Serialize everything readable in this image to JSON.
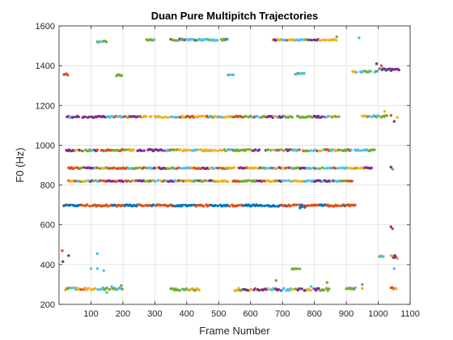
{
  "chart_data": {
    "type": "scatter",
    "title": "Duan Pure Multipitch Trajectories",
    "xlabel": "Frame Number",
    "ylabel": "F0 (Hz)",
    "xlim": [
      0,
      1100
    ],
    "ylim": [
      200,
      1600
    ],
    "xticks": [
      100,
      200,
      300,
      400,
      500,
      600,
      700,
      800,
      900,
      1000,
      1100
    ],
    "yticks": [
      200,
      400,
      600,
      800,
      1000,
      1200,
      1400,
      1600
    ],
    "grid": true,
    "legend": "none",
    "colors": [
      "#0072BD",
      "#D95319",
      "#EDB120",
      "#7E2F8E",
      "#77AC30",
      "#4DBEEE"
    ],
    "segments": [
      {
        "x": [
          15,
          930
        ],
        "y": 697,
        "jitter": 4,
        "colors": [
          0,
          1
        ]
      },
      {
        "x": [
          15,
          990
        ],
        "y": 975,
        "jitter": 4,
        "colors": [
          1,
          2,
          3,
          4,
          5
        ]
      },
      {
        "x": [
          30,
          980
        ],
        "y": 885,
        "jitter": 3,
        "colors": [
          1,
          2,
          3,
          4,
          5
        ]
      },
      {
        "x": [
          30,
          530
        ],
        "y": 820,
        "jitter": 3,
        "colors": [
          1,
          2,
          3,
          4,
          5
        ]
      },
      {
        "x": [
          545,
          920
        ],
        "y": 820,
        "jitter": 3,
        "colors": [
          1,
          2,
          3,
          4,
          5
        ]
      },
      {
        "x": [
          25,
          880
        ],
        "y": 1143,
        "jitter": 4,
        "colors": [
          1,
          2,
          3,
          4,
          5
        ]
      },
      {
        "x": [
          950,
          1030
        ],
        "y": 1145,
        "jitter": 4,
        "colors": [
          2,
          4,
          5
        ]
      },
      {
        "x": [
          120,
          150
        ],
        "y": 1520,
        "jitter": 5,
        "colors": [
          4,
          5
        ]
      },
      {
        "x": [
          270,
          300
        ],
        "y": 1530,
        "jitter": 3,
        "colors": [
          4,
          5
        ]
      },
      {
        "x": [
          350,
          530
        ],
        "y": 1530,
        "jitter": 4,
        "colors": [
          3,
          4,
          5
        ]
      },
      {
        "x": [
          670,
          870
        ],
        "y": 1530,
        "jitter": 3,
        "colors": [
          2,
          3,
          4,
          5
        ]
      },
      {
        "x": [
          920,
          1000
        ],
        "y": 1370,
        "jitter": 3,
        "colors": [
          2,
          4,
          5
        ]
      },
      {
        "x": [
          1000,
          1070
        ],
        "y": 1380,
        "jitter": 5,
        "colors": [
          0,
          3,
          5
        ]
      },
      {
        "x": [
          15,
          30
        ],
        "y": 1355,
        "jitter": 5,
        "colors": [
          1,
          2
        ]
      },
      {
        "x": [
          180,
          200
        ],
        "y": 1350,
        "jitter": 5,
        "colors": [
          4,
          5
        ]
      },
      {
        "x": [
          530,
          550
        ],
        "y": 1355,
        "jitter": 3,
        "colors": [
          4,
          5
        ]
      },
      {
        "x": [
          740,
          770
        ],
        "y": 1360,
        "jitter": 3,
        "colors": [
          4,
          5
        ]
      },
      {
        "x": [
          20,
          200
        ],
        "y": 278,
        "jitter": 6,
        "colors": [
          1,
          2,
          4,
          5
        ]
      },
      {
        "x": [
          350,
          440
        ],
        "y": 275,
        "jitter": 5,
        "colors": [
          2,
          4,
          5
        ]
      },
      {
        "x": [
          550,
          850
        ],
        "y": 275,
        "jitter": 6,
        "colors": [
          2,
          3,
          4,
          5
        ]
      },
      {
        "x": [
          900,
          930
        ],
        "y": 280,
        "jitter": 5,
        "colors": [
          4,
          5
        ]
      },
      {
        "x": [
          1040,
          1060
        ],
        "y": 280,
        "jitter": 5,
        "colors": [
          1,
          2,
          3
        ]
      },
      {
        "x": [
          730,
          760
        ],
        "y": 378,
        "jitter": 2,
        "colors": [
          4
        ]
      },
      {
        "x": [
          1000,
          1020
        ],
        "y": 440,
        "jitter": 5,
        "colors": [
          4,
          5
        ]
      },
      {
        "x": [
          1040,
          1060
        ],
        "y": 440,
        "jitter": 6,
        "colors": [
          2,
          3
        ]
      }
    ],
    "extra_points": [
      [
        10,
        470,
        1
      ],
      [
        12,
        415,
        3
      ],
      [
        30,
        445,
        3
      ],
      [
        100,
        380,
        5
      ],
      [
        120,
        380,
        5
      ],
      [
        120,
        455,
        5
      ],
      [
        140,
        370,
        5
      ],
      [
        150,
        260,
        5
      ],
      [
        165,
        290,
        5
      ],
      [
        195,
        295,
        4
      ],
      [
        680,
        320,
        4
      ],
      [
        750,
        1610,
        4
      ],
      [
        870,
        1545,
        4
      ],
      [
        940,
        1540,
        5
      ],
      [
        995,
        1410,
        3
      ],
      [
        1010,
        1400,
        1
      ],
      [
        1020,
        1170,
        2
      ],
      [
        1040,
        1150,
        1
      ],
      [
        1050,
        1120,
        3
      ],
      [
        1060,
        1140,
        2
      ],
      [
        1040,
        890,
        3
      ],
      [
        1045,
        880,
        4
      ],
      [
        1040,
        590,
        3
      ],
      [
        1045,
        580,
        1
      ],
      [
        1050,
        380,
        5
      ],
      [
        1060,
        430,
        2
      ],
      [
        950,
        280,
        2
      ],
      [
        950,
        300,
        4
      ],
      [
        840,
        310,
        4
      ],
      [
        790,
        290,
        5
      ],
      [
        760,
        690,
        0
      ],
      [
        770,
        688,
        0
      ],
      [
        755,
        685,
        0
      ]
    ]
  }
}
